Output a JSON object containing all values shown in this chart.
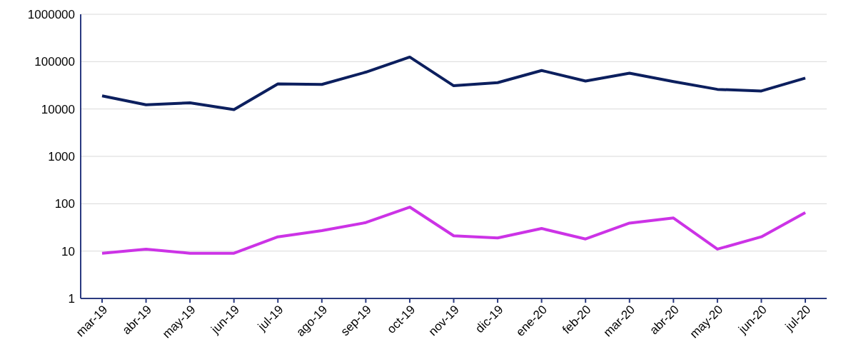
{
  "chart_data": {
    "type": "line",
    "categories": [
      "mar-19",
      "abr-19",
      "may-19",
      "jun-19",
      "jul-19",
      "ago-19",
      "sep-19",
      "oct-19",
      "nov-19",
      "dic-19",
      "ene-20",
      "feb-20",
      "mar-20",
      "abr-20",
      "may-20",
      "jun-20",
      "jul-20"
    ],
    "series": [
      {
        "color": "#cc33e6",
        "values": [
          9,
          11,
          9,
          9,
          20,
          27,
          40,
          85,
          21,
          19,
          30,
          18,
          39,
          50,
          11,
          20,
          65
        ]
      },
      {
        "color": "#0c1f5e",
        "values": [
          19000,
          12300,
          13500,
          9700,
          34000,
          33000,
          60000,
          125000,
          31000,
          36000,
          65000,
          39000,
          57000,
          38000,
          26000,
          24000,
          45000
        ]
      }
    ],
    "log": "y",
    "ylim": [
      1,
      1000000
    ],
    "yticks": [
      1,
      10,
      100,
      1000,
      10000,
      100000,
      1000000
    ],
    "grid": "y",
    "marker": "none",
    "line_style": "solid"
  }
}
